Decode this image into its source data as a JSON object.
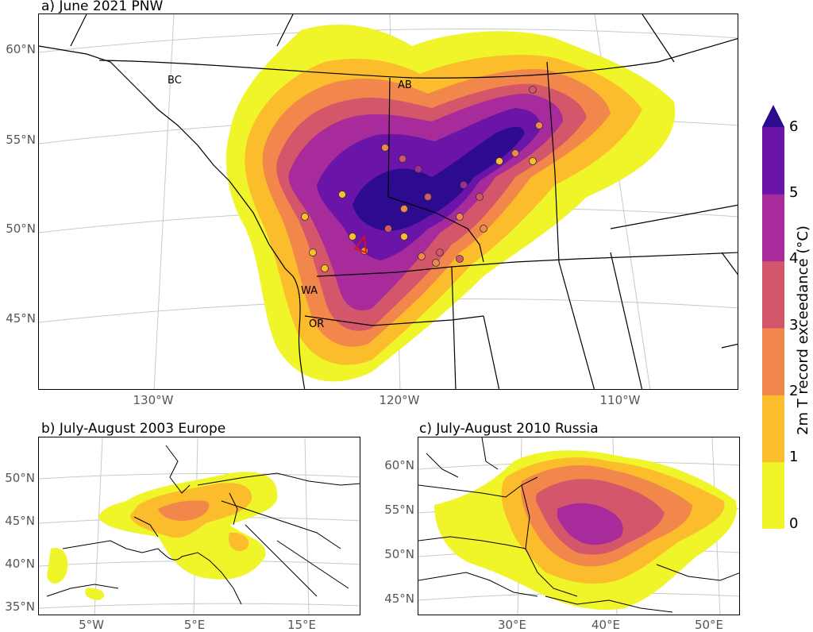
{
  "panels": {
    "a": {
      "title": "a) June 2021 PNW",
      "lat_ticks": [
        "60°N",
        "55°N",
        "50°N",
        "45°N"
      ],
      "lon_ticks": [
        "130°W",
        "120°W",
        "110°W"
      ],
      "region_labels": [
        "BC",
        "AB",
        "WA",
        "OR"
      ]
    },
    "b": {
      "title": "b) July-August 2003 Europe",
      "lat_ticks": [
        "50°N",
        "45°N",
        "40°N",
        "35°N"
      ],
      "lon_ticks": [
        "5°W",
        "5°E",
        "15°E"
      ]
    },
    "c": {
      "title": "c) July-August 2010 Russia",
      "lat_ticks": [
        "60°N",
        "55°N",
        "50°N",
        "45°N"
      ],
      "lon_ticks": [
        "30°E",
        "40°E",
        "50°E"
      ]
    }
  },
  "colorbar": {
    "label": "2m T record exceedance (°C)",
    "ticks": [
      "0",
      "1",
      "2",
      "3",
      "4",
      "5",
      "6"
    ],
    "colors": [
      "#f0f52a",
      "#fbbd2c",
      "#f2874b",
      "#d4566a",
      "#a72b9a",
      "#6a14a8",
      "#2c0b8f"
    ],
    "extend": "max"
  },
  "station_colors": [
    "#fbbd2c",
    "#f2874b",
    "#d4566a",
    "#a72b9a"
  ]
}
